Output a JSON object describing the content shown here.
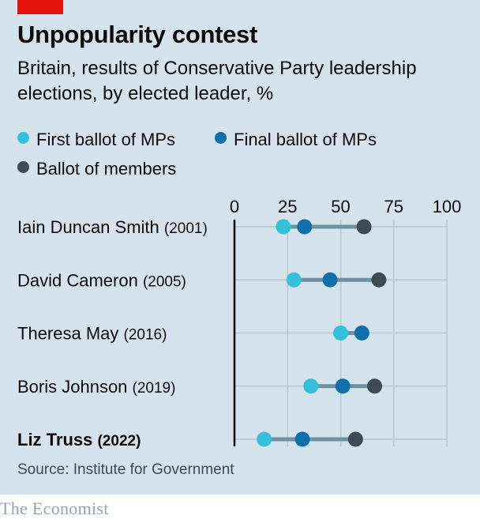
{
  "title": "Unpopularity contest",
  "subtitle": "Britain, results of Conservative Party leadership elections, by elected leader, %",
  "source": "Source: Institute for Government",
  "brand": "The Economist",
  "colors": {
    "background": "#d5e3ed",
    "first_ballot": "#35c1dc",
    "final_ballot": "#1170aa",
    "members": "#3f4b52",
    "connector": "#6e929f",
    "grid": "#b7c6cf",
    "axis": "#0c0c0c",
    "accent": "#e3120b"
  },
  "chart_data": {
    "type": "dot-range",
    "title": "Unpopularity contest",
    "xlim": [
      0,
      100
    ],
    "xticks": [
      "0",
      "25",
      "50",
      "75",
      "100"
    ],
    "tick_values": [
      0,
      25,
      50,
      75,
      100
    ],
    "legend": [
      {
        "key": "first",
        "label": "First ballot of MPs"
      },
      {
        "key": "final",
        "label": "Final ballot of MPs"
      },
      {
        "key": "members",
        "label": "Ballot of members"
      }
    ],
    "rows": [
      {
        "name": "Iain Duncan Smith",
        "year": "(2001)",
        "highlight": false,
        "first": 23,
        "final": 33,
        "members": 61
      },
      {
        "name": "David Cameron",
        "year": "(2005)",
        "highlight": false,
        "first": 28,
        "final": 45,
        "members": 68
      },
      {
        "name": "Theresa May",
        "year": "(2016)",
        "highlight": false,
        "first": 50,
        "final": 60,
        "members": null
      },
      {
        "name": "Boris Johnson",
        "year": "(2019)",
        "highlight": false,
        "first": 36,
        "final": 51,
        "members": 66
      },
      {
        "name": "Liz Truss",
        "year": "(2022)",
        "highlight": true,
        "first": 14,
        "final": 32,
        "members": 57
      }
    ]
  }
}
